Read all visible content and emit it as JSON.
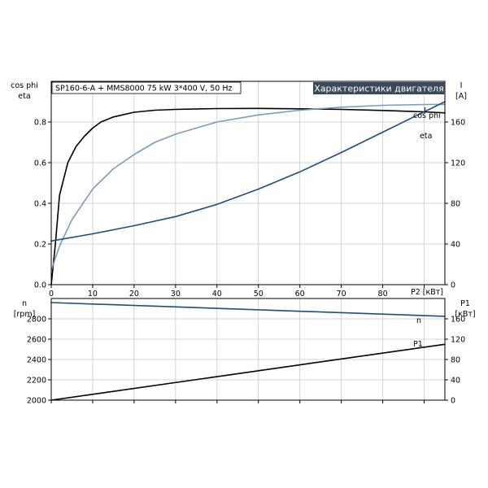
{
  "header": {
    "info": "SP160-6-A + MMS8000   75 kW   3*400 V, 50 Hz",
    "title": "Характеристики двигателя"
  },
  "colors": {
    "eta": "#000000",
    "cos_phi": "#7a9dbb",
    "I": "#1e4e7e",
    "n": "#1e4e7e",
    "P1": "#000000",
    "title_bg": "#3a4a5a"
  },
  "chart_data": [
    {
      "type": "line",
      "x_axis": {
        "label": "P2 [кВт]",
        "range": [
          0,
          95
        ],
        "ticks": [
          "0",
          "10",
          "20",
          "30",
          "40",
          "50",
          "60",
          "70",
          "80"
        ]
      },
      "y_left": {
        "label_line1": "cos phi",
        "label_line2": "eta",
        "range": [
          0,
          1.0
        ],
        "ticks": [
          "0.0",
          "0.2",
          "0.4",
          "0.6",
          "0.8"
        ]
      },
      "y_right": {
        "label_line1": "I",
        "label_line2": "[A]",
        "range": [
          0,
          200
        ],
        "ticks": [
          "0",
          "40",
          "80",
          "120",
          "160"
        ]
      },
      "grid": true,
      "series": [
        {
          "name": "eta",
          "axis": "left",
          "x": [
            0,
            1,
            2,
            4,
            6,
            8,
            10,
            12,
            15,
            20,
            25,
            30,
            40,
            50,
            60,
            70,
            80,
            90,
            95
          ],
          "y": [
            0,
            0.2,
            0.44,
            0.6,
            0.68,
            0.73,
            0.77,
            0.8,
            0.825,
            0.848,
            0.858,
            0.862,
            0.866,
            0.867,
            0.865,
            0.862,
            0.857,
            0.85,
            0.845
          ]
        },
        {
          "name": "cos phi",
          "axis": "left",
          "x": [
            0,
            2,
            5,
            10,
            15,
            20,
            25,
            30,
            40,
            50,
            60,
            70,
            80,
            90,
            95
          ],
          "y": [
            0.07,
            0.19,
            0.32,
            0.47,
            0.57,
            0.64,
            0.7,
            0.74,
            0.8,
            0.835,
            0.858,
            0.873,
            0.882,
            0.886,
            0.887
          ]
        },
        {
          "name": "I",
          "axis": "right",
          "x": [
            0,
            10,
            20,
            30,
            40,
            50,
            60,
            70,
            80,
            90,
            95
          ],
          "y": [
            43,
            50,
            58,
            67,
            79,
            94,
            111,
            130,
            150,
            170,
            180
          ]
        }
      ]
    },
    {
      "type": "line",
      "x_axis": {
        "range": [
          0,
          95
        ]
      },
      "y_left": {
        "label_line1": "n",
        "label_line2": "[rpm]",
        "range": [
          2000,
          3000
        ],
        "ticks": [
          "2000",
          "2200",
          "2400",
          "2600",
          "2800"
        ]
      },
      "y_right": {
        "label_line1": "P1",
        "label_line2": "[кВт]",
        "range": [
          0,
          200
        ],
        "ticks": [
          "0",
          "40",
          "80",
          "120",
          "160"
        ]
      },
      "grid": true,
      "series": [
        {
          "name": "n",
          "axis": "left",
          "x": [
            0,
            95
          ],
          "y": [
            2960,
            2825
          ]
        },
        {
          "name": "P1",
          "axis": "right",
          "x": [
            0,
            95
          ],
          "y": [
            0,
            110
          ]
        }
      ]
    }
  ]
}
